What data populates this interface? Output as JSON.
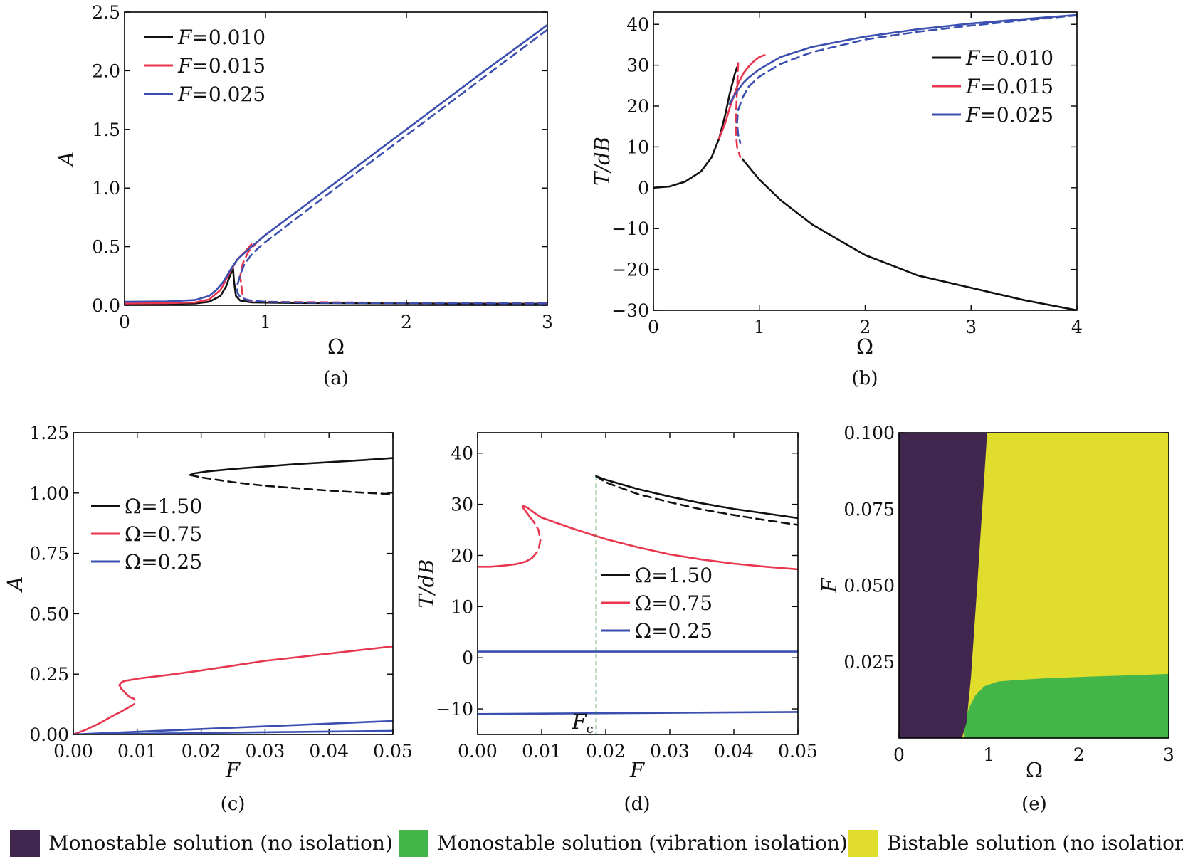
{
  "colors": {
    "black": "#111111",
    "red": "#e8364f",
    "blue": "#3a4fb0",
    "green_marker": "#2e8b3a",
    "region_mono_no_iso": "#41264f",
    "region_mono_iso": "#44b549",
    "region_bistable": "#e1dd2d"
  },
  "chart_data": [
    {
      "id": "a",
      "type": "line",
      "panel_label": "(a)",
      "xlabel": "Ω",
      "ylabel": "A",
      "xlim": [
        0,
        3
      ],
      "ylim": [
        0,
        2.5
      ],
      "xticks": [
        0,
        1,
        2,
        3
      ],
      "xticklabels": [
        "0",
        "1",
        "2",
        "3"
      ],
      "yticks": [
        0,
        0.5,
        1.0,
        1.5,
        2.0,
        2.5
      ],
      "yticklabels": [
        "0.0",
        "0.5",
        "1.0",
        "1.5",
        "2.0",
        "2.5"
      ],
      "legend": {
        "position": "top-left",
        "entries": [
          {
            "label": "F = 0.010",
            "color": "black"
          },
          {
            "label": "F = 0.015",
            "color": "red"
          },
          {
            "label": "F = 0.025",
            "color": "blue"
          }
        ]
      },
      "series": [
        {
          "name": "F = 0.010",
          "color": "black",
          "style": "solid",
          "x": [
            0,
            0.3,
            0.5,
            0.6,
            0.68,
            0.72,
            0.75,
            0.765,
            0.77,
            0.775,
            0.79,
            0.82,
            0.9,
            1.2,
            2,
            3
          ],
          "y": [
            0.011,
            0.012,
            0.015,
            0.03,
            0.08,
            0.16,
            0.26,
            0.3,
            0.31,
            0.22,
            0.08,
            0.04,
            0.025,
            0.02,
            0.015,
            0.012
          ]
        },
        {
          "name": "F = 0.015",
          "color": "red",
          "style": "solid",
          "x": [
            0,
            0.3,
            0.5,
            0.6,
            0.68,
            0.72,
            0.76,
            0.8,
            0.85,
            0.9
          ],
          "y": [
            0.016,
            0.018,
            0.024,
            0.05,
            0.13,
            0.22,
            0.31,
            0.39,
            0.45,
            0.52
          ]
        },
        {
          "name": "F = 0.015",
          "color": "red",
          "style": "dashed",
          "x": [
            1.02,
            0.95,
            0.88,
            0.84,
            0.82,
            0.84,
            0.9,
            1.0,
            1.5,
            2,
            3
          ],
          "y": [
            0.62,
            0.55,
            0.46,
            0.36,
            0.25,
            0.06,
            0.035,
            0.03,
            0.025,
            0.02,
            0.018
          ]
        },
        {
          "name": "F = 0.025",
          "color": "blue",
          "style": "solid",
          "x": [
            0,
            0.3,
            0.5,
            0.6,
            0.65,
            0.7,
            0.75,
            0.8,
            0.9,
            1.0,
            1.5,
            2,
            2.5,
            3
          ],
          "y": [
            0.03,
            0.033,
            0.045,
            0.08,
            0.13,
            0.2,
            0.3,
            0.39,
            0.5,
            0.6,
            1.05,
            1.5,
            1.95,
            2.39
          ]
        },
        {
          "name": "F = 0.025",
          "color": "blue",
          "style": "dashed",
          "x": [
            3,
            2.5,
            2,
            1.5,
            1.0,
            0.95,
            0.9,
            0.85,
            0.82,
            0.8,
            0.8,
            0.82,
            0.86,
            0.9,
            1.0,
            1.2,
            1.5,
            2,
            3
          ],
          "y": [
            2.35,
            1.9,
            1.45,
            1.0,
            0.54,
            0.49,
            0.43,
            0.35,
            0.26,
            0.17,
            0.11,
            0.07,
            0.05,
            0.04,
            0.03,
            0.025,
            0.02,
            0.018,
            0.015
          ]
        }
      ]
    },
    {
      "id": "b",
      "type": "line",
      "panel_label": "(b)",
      "xlabel": "Ω",
      "ylabel": "T/dB",
      "xlim": [
        0,
        4
      ],
      "ylim": [
        -30,
        43
      ],
      "xticks": [
        0,
        1,
        2,
        3,
        4
      ],
      "xticklabels": [
        "0",
        "1",
        "2",
        "3",
        "4"
      ],
      "yticks": [
        -30,
        -20,
        -10,
        0,
        10,
        20,
        30,
        40
      ],
      "yticklabels": [
        "−30",
        "−20",
        "−10",
        "0",
        "10",
        "20",
        "30",
        "40"
      ],
      "legend": {
        "position": "top-right",
        "entries": [
          {
            "label": "F = 0.010",
            "color": "black"
          },
          {
            "label": "F = 0.015",
            "color": "red"
          },
          {
            "label": "F = 0.025",
            "color": "blue"
          }
        ]
      },
      "series": [
        {
          "name": "F = 0.010",
          "color": "black",
          "style": "solid",
          "x": [
            0,
            0.15,
            0.3,
            0.45,
            0.55,
            0.62,
            0.68,
            0.72,
            0.75,
            0.77,
            0.79,
            0.8
          ],
          "y": [
            0,
            0.3,
            1.5,
            4,
            7.5,
            12,
            18,
            23,
            26,
            28,
            29.5,
            30
          ]
        },
        {
          "name": "F = 0.010",
          "color": "black",
          "style": "solid",
          "x": [
            0.84,
            1.0,
            1.2,
            1.5,
            2.0,
            2.5,
            3.0,
            3.5,
            4.0
          ],
          "y": [
            7,
            2,
            -3,
            -9,
            -16.5,
            -21.5,
            -24.5,
            -27.5,
            -30
          ]
        },
        {
          "name": "F = 0.015",
          "color": "red",
          "style": "solid",
          "x": [
            0.62,
            0.68,
            0.72,
            0.76,
            0.8,
            0.85,
            0.9,
            0.95,
            1.0,
            1.05
          ],
          "y": [
            12,
            16,
            19.5,
            22.5,
            25.5,
            28,
            29.7,
            31,
            32,
            32.5
          ]
        },
        {
          "name": "F = 0.015",
          "color": "red",
          "style": "dashed",
          "x": [
            0.8,
            0.79,
            0.78,
            0.78,
            0.79,
            0.82
          ],
          "y": [
            30.5,
            24,
            18,
            13,
            10,
            7.5
          ]
        },
        {
          "name": "F = 0.025",
          "color": "blue",
          "style": "solid",
          "x": [
            0.72,
            0.75,
            0.8,
            0.85,
            0.9,
            1.0,
            1.2,
            1.5,
            2.0,
            2.5,
            3.0,
            3.5,
            4.0
          ],
          "y": [
            20.5,
            22,
            24,
            25.7,
            27,
            29,
            32,
            34.5,
            37,
            38.8,
            40.2,
            41.3,
            42.3
          ]
        },
        {
          "name": "F = 0.025",
          "color": "blue",
          "style": "dashed",
          "x": [
            4.0,
            3.5,
            3.0,
            2.5,
            2.0,
            1.5,
            1.2,
            1.0,
            0.9,
            0.84,
            0.8,
            0.79,
            0.8,
            0.82
          ],
          "y": [
            42.2,
            41,
            39.7,
            38.2,
            36.3,
            33.2,
            30.3,
            27.2,
            24.8,
            22,
            19,
            16,
            13,
            11
          ]
        }
      ]
    },
    {
      "id": "c",
      "type": "line",
      "panel_label": "(c)",
      "xlabel": "F",
      "ylabel": "A",
      "xlim": [
        0,
        0.05
      ],
      "ylim": [
        0,
        1.25
      ],
      "xticks": [
        0,
        0.01,
        0.02,
        0.03,
        0.04,
        0.05
      ],
      "xticklabels": [
        "0.00",
        "0.01",
        "0.02",
        "0.03",
        "0.04",
        "0.05"
      ],
      "yticks": [
        0,
        0.25,
        0.5,
        0.75,
        1.0,
        1.25
      ],
      "yticklabels": [
        "0.00",
        "0.25",
        "0.50",
        "0.75",
        "1.00",
        "1.25"
      ],
      "legend": {
        "position": "center-left",
        "entries": [
          {
            "label": "Ω = 1.50",
            "color": "black"
          },
          {
            "label": "Ω = 0.75",
            "color": "red"
          },
          {
            "label": "Ω = 0.25",
            "color": "blue"
          }
        ]
      },
      "series": [
        {
          "name": "Ω = 1.50",
          "color": "black",
          "style": "solid",
          "x": [
            0.0183,
            0.019,
            0.021,
            0.025,
            0.03,
            0.035,
            0.04,
            0.045,
            0.05
          ],
          "y": [
            1.075,
            1.082,
            1.09,
            1.1,
            1.11,
            1.12,
            1.128,
            1.136,
            1.145
          ]
        },
        {
          "name": "Ω = 1.50",
          "color": "black",
          "style": "dashed",
          "x": [
            0.0183,
            0.02,
            0.025,
            0.03,
            0.035,
            0.04,
            0.045,
            0.05
          ],
          "y": [
            1.075,
            1.065,
            1.045,
            1.03,
            1.02,
            1.01,
            1.002,
            0.995
          ]
        },
        {
          "name": "Ω = 0.75",
          "color": "red",
          "style": "solid",
          "x": [
            0,
            0.002,
            0.004,
            0.006,
            0.0075,
            0.0085
          ],
          "y": [
            0,
            0.02,
            0.045,
            0.075,
            0.095,
            0.11
          ]
        },
        {
          "name": "Ω = 0.75",
          "color": "red",
          "style": "solid",
          "x": [
            0.0088,
            0.0082,
            0.0075,
            0.0072,
            0.0075,
            0.008,
            0.009,
            0.01,
            0.015,
            0.02,
            0.025,
            0.03,
            0.035,
            0.04,
            0.045,
            0.05
          ],
          "y": [
            0.155,
            0.17,
            0.19,
            0.205,
            0.215,
            0.222,
            0.226,
            0.231,
            0.247,
            0.265,
            0.285,
            0.305,
            0.32,
            0.335,
            0.35,
            0.365
          ]
        },
        {
          "name": "Ω = 0.75",
          "color": "red",
          "style": "dashed",
          "x": [
            0.0085,
            0.0095,
            0.0098,
            0.0095,
            0.0088
          ],
          "y": [
            0.11,
            0.125,
            0.135,
            0.148,
            0.155
          ]
        },
        {
          "name": "Ω = 0.25",
          "color": "blue",
          "style": "solid",
          "x": [
            0,
            0.05
          ],
          "y": [
            0,
            0.056
          ]
        },
        {
          "name": "Ω = 0.25",
          "color": "blue",
          "style": "solid",
          "x": [
            0,
            0.05
          ],
          "y": [
            0,
            0.015
          ]
        }
      ]
    },
    {
      "id": "d",
      "type": "line",
      "panel_label": "(d)",
      "xlabel": "F",
      "ylabel": "T/dB",
      "annotation": "F",
      "annotation_sub": "c",
      "annotation_x": 0.0185,
      "xlim": [
        0,
        0.05
      ],
      "ylim": [
        -15,
        44
      ],
      "xticks": [
        0,
        0.01,
        0.02,
        0.03,
        0.04,
        0.05
      ],
      "xticklabels": [
        "0.00",
        "0.01",
        "0.02",
        "0.03",
        "0.04",
        "0.05"
      ],
      "yticks": [
        -10,
        0,
        10,
        20,
        30,
        40
      ],
      "yticklabels": [
        "−10",
        "0",
        "10",
        "20",
        "30",
        "40"
      ],
      "legend": {
        "position": "center-right",
        "entries": [
          {
            "label": "Ω = 1.50",
            "color": "black"
          },
          {
            "label": "Ω = 0.75",
            "color": "red"
          },
          {
            "label": "Ω = 0.25",
            "color": "blue"
          }
        ]
      },
      "series": [
        {
          "name": "Ω = 1.50",
          "color": "black",
          "style": "solid",
          "x": [
            0.0185,
            0.02,
            0.025,
            0.03,
            0.035,
            0.04,
            0.045,
            0.05
          ],
          "y": [
            35.5,
            34.8,
            33,
            31.5,
            30.2,
            29.1,
            28.2,
            27.3
          ]
        },
        {
          "name": "Ω = 1.50",
          "color": "black",
          "style": "dashed",
          "x": [
            0.0185,
            0.02,
            0.025,
            0.03,
            0.035,
            0.04,
            0.045,
            0.05
          ],
          "y": [
            35.5,
            34.3,
            32,
            30.4,
            29,
            27.9,
            26.9,
            26
          ]
        },
        {
          "name": "Ω = 0.75",
          "color": "red",
          "style": "solid",
          "x": [
            0,
            0.002,
            0.004,
            0.006,
            0.0075,
            0.0085
          ],
          "y": [
            17.8,
            17.8,
            18,
            18.3,
            18.8,
            19.5
          ]
        },
        {
          "name": "Ω = 0.75",
          "color": "red",
          "style": "solid",
          "x": [
            0.0088,
            0.008,
            0.0074,
            0.007,
            0.0072,
            0.0078,
            0.009,
            0.01,
            0.015,
            0.02,
            0.025,
            0.03,
            0.035,
            0.04,
            0.045,
            0.05
          ],
          "y": [
            26.5,
            27.8,
            28.8,
            29.5,
            29.7,
            29.3,
            28.2,
            27.4,
            25.2,
            23.2,
            21.6,
            20.2,
            19.2,
            18.4,
            17.8,
            17.3
          ]
        },
        {
          "name": "Ω = 0.75",
          "color": "red",
          "style": "dashed",
          "x": [
            0.0085,
            0.0095,
            0.0098,
            0.0095,
            0.0088
          ],
          "y": [
            19.5,
            21,
            23,
            25,
            26.5
          ]
        },
        {
          "name": "Ω = 0.25",
          "color": "blue",
          "style": "solid",
          "x": [
            0,
            0.05
          ],
          "y": [
            1.2,
            1.2
          ]
        },
        {
          "name": "Ω = 0.25",
          "color": "blue",
          "style": "solid",
          "x": [
            0,
            0.05
          ],
          "y": [
            -11,
            -10.6
          ]
        }
      ]
    },
    {
      "id": "e",
      "type": "heatmap",
      "panel_label": "(e)",
      "xlabel": "Ω",
      "ylabel": "F",
      "xlim": [
        0,
        3
      ],
      "ylim": [
        0,
        0.1
      ],
      "xticks": [
        0,
        1,
        2,
        3
      ],
      "xticklabels": [
        "0",
        "1",
        "2",
        "3"
      ],
      "yticks": [
        0.025,
        0.05,
        0.075,
        0.1
      ],
      "yticklabels": [
        "0.025",
        "0.050",
        "0.075",
        "0.100"
      ],
      "regions": [
        {
          "label": "Monostable solution (no isolation)",
          "color": "region_mono_no_iso"
        },
        {
          "label": "Monostable solution (vibration isolation)",
          "color": "region_mono_iso"
        },
        {
          "label": "Bistable solution (no isolation)",
          "color": "region_bistable"
        }
      ],
      "boundary_purple_right": {
        "F": [
          0,
          0.005,
          0.02,
          0.05,
          0.1
        ],
        "omega": [
          0.7,
          0.75,
          0.8,
          0.87,
          0.98
        ]
      },
      "boundary_green_top": {
        "omega": [
          0.73,
          0.78,
          0.85,
          0.95,
          1.1,
          1.3,
          1.6,
          2.0,
          2.5,
          3.0
        ],
        "F": [
          0.005,
          0.01,
          0.014,
          0.017,
          0.0185,
          0.019,
          0.0195,
          0.02,
          0.0205,
          0.021
        ]
      }
    }
  ],
  "legend_bottom": [
    {
      "label": "Monostable solution (no isolation)",
      "color": "region_mono_no_iso"
    },
    {
      "label": "Monostable solution (vibration isolation)",
      "color": "region_mono_iso"
    },
    {
      "label": "Bistable solution (no isolation)",
      "color": "region_bistable"
    }
  ]
}
